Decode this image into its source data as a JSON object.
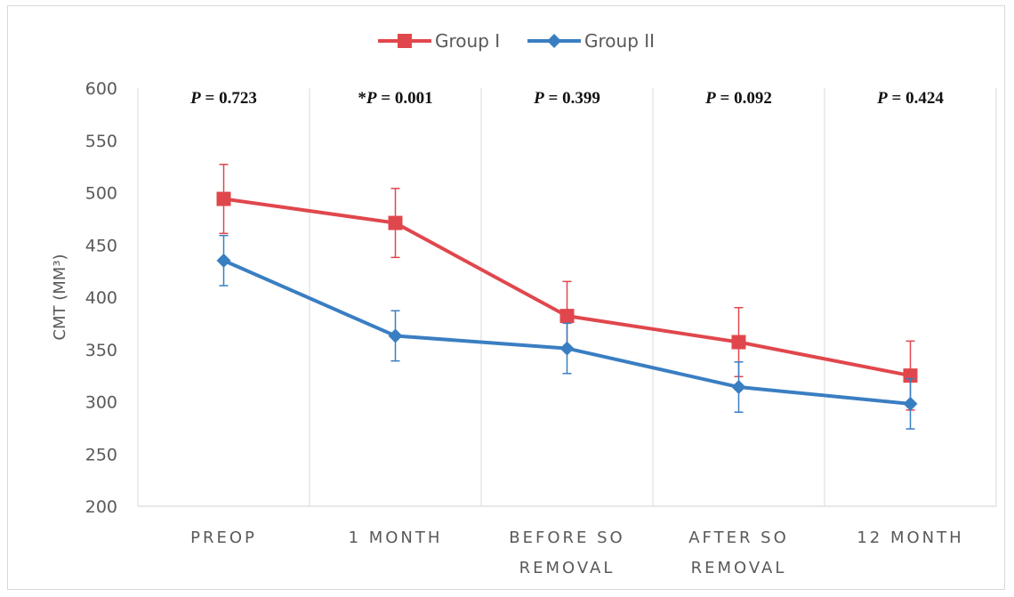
{
  "chart_data": {
    "type": "line",
    "ylabel": "CMT (MM³)",
    "ylim": [
      200,
      600
    ],
    "yticks": [
      200,
      250,
      300,
      350,
      400,
      450,
      500,
      550,
      600
    ],
    "categories": [
      [
        "PREOP"
      ],
      [
        "1 MONTH"
      ],
      [
        "BEFORE SO",
        "REMOVAL"
      ],
      [
        "AFTER SO",
        "REMOVAL"
      ],
      [
        "12 MONTH"
      ]
    ],
    "p_values": [
      {
        "prefix": "",
        "p": "P",
        "rest": " = 0.723"
      },
      {
        "prefix": "*",
        "p": "P",
        "rest": " = 0.001"
      },
      {
        "prefix": "",
        "p": "P",
        "rest": " = 0.399"
      },
      {
        "prefix": "",
        "p": "P",
        "rest": " = 0.092"
      },
      {
        "prefix": "",
        "p": "P",
        "rest": " = 0.424"
      }
    ],
    "series": [
      {
        "name": "Group I",
        "color": "#e0474c",
        "marker": "square",
        "values": [
          494,
          471,
          382,
          357,
          325
        ],
        "error": [
          33,
          33,
          33,
          33,
          33
        ]
      },
      {
        "name": "Group II",
        "color": "#3a7ec2",
        "marker": "diamond",
        "values": [
          435,
          363,
          351,
          314,
          298
        ],
        "error": [
          24,
          24,
          24,
          24,
          24
        ]
      }
    ],
    "legend": "top-center",
    "grid": "vertical-category-separators"
  }
}
